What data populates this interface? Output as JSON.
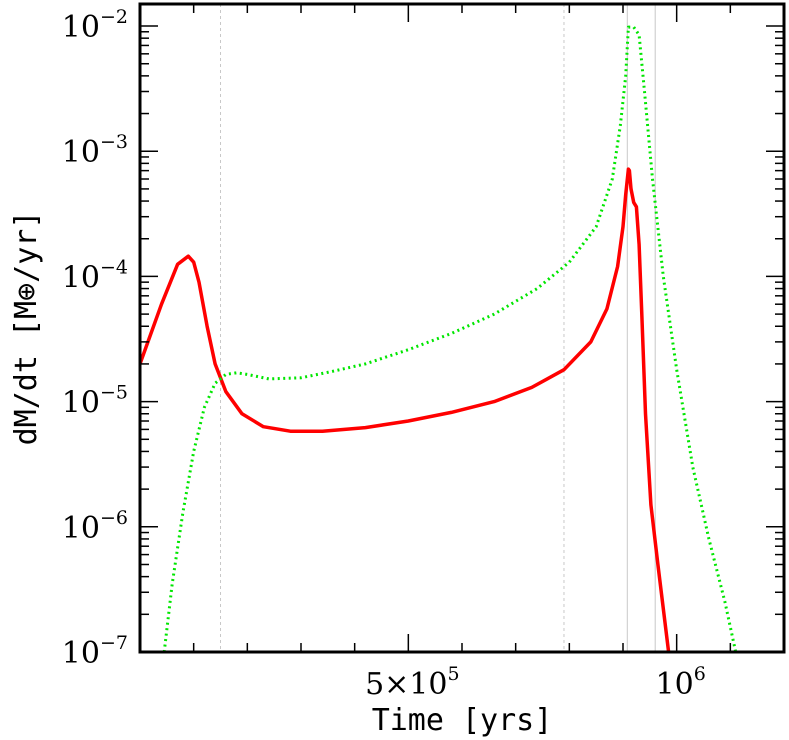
{
  "chart_data": {
    "type": "line",
    "title": "",
    "xlabel": "Time [yrs]",
    "ylabel": "dM/dt [M⊕/yr]",
    "xlim": [
      0,
      1200000
    ],
    "ylim": [
      1e-07,
      0.015
    ],
    "yscale": "log",
    "x_ticks": [
      {
        "value": 500000,
        "label": "5×10",
        "sup": "5"
      },
      {
        "value": 1000000,
        "label": "10",
        "sup": "6"
      }
    ],
    "y_ticks": [
      {
        "value": 1e-07,
        "label": "10",
        "sup": "−7"
      },
      {
        "value": 1e-06,
        "label": "10",
        "sup": "−6"
      },
      {
        "value": 1e-05,
        "label": "10",
        "sup": "−5"
      },
      {
        "value": 0.0001,
        "label": "10",
        "sup": "−4"
      },
      {
        "value": 0.001,
        "label": "10",
        "sup": "−3"
      },
      {
        "value": 0.01,
        "label": "10",
        "sup": "−2"
      }
    ],
    "vertical_lines": [
      150000,
      790000,
      908000,
      960000
    ],
    "series": [
      {
        "color": "#ff0000",
        "style": "solid",
        "x": [
          0,
          40000,
          70000,
          90000,
          100000,
          110000,
          125000,
          140000,
          160000,
          190000,
          230000,
          280000,
          340000,
          420000,
          500000,
          580000,
          660000,
          730000,
          790000,
          840000,
          870000,
          890000,
          900000,
          905000,
          910000,
          912000,
          915000,
          920000,
          925000,
          930000,
          935000,
          942000,
          952000,
          965000,
          985000
        ],
        "y": [
          2e-05,
          6e-05,
          0.000125,
          0.000145,
          0.00013,
          9e-05,
          4e-05,
          2e-05,
          1.2e-05,
          8e-06,
          6.3e-06,
          5.8e-06,
          5.8e-06,
          6.2e-06,
          7e-06,
          8.2e-06,
          1e-05,
          1.3e-05,
          1.8e-05,
          3e-05,
          5.5e-05,
          0.00012,
          0.00025,
          0.00045,
          0.00072,
          0.0007,
          0.0005,
          0.00039,
          0.00036,
          0.00018,
          5e-05,
          8e-06,
          1.5e-06,
          5e-07,
          1e-07
        ]
      },
      {
        "color": "#00e600",
        "style": "dotted",
        "x": [
          45000,
          60000,
          80000,
          100000,
          120000,
          140000,
          160000,
          180000,
          200000,
          240000,
          300000,
          360000,
          420000,
          500000,
          580000,
          660000,
          740000,
          800000,
          850000,
          880000,
          895000,
          905000,
          910000,
          920000,
          930000,
          940000,
          955000,
          975000,
          1000000,
          1030000,
          1060000,
          1090000,
          1110000
        ],
        "y": [
          1e-07,
          3.5e-07,
          1.3e-06,
          4e-06,
          9e-06,
          1.4e-05,
          1.65e-05,
          1.7e-05,
          1.65e-05,
          1.52e-05,
          1.55e-05,
          1.75e-05,
          2e-05,
          2.6e-05,
          3.5e-05,
          5e-05,
          8e-05,
          0.00013,
          0.00025,
          0.0006,
          0.0016,
          0.004,
          0.0098,
          0.0098,
          0.0085,
          0.003,
          0.0006,
          0.0001,
          1.8e-05,
          3e-06,
          8e-07,
          2.5e-07,
          1e-07
        ]
      }
    ]
  }
}
